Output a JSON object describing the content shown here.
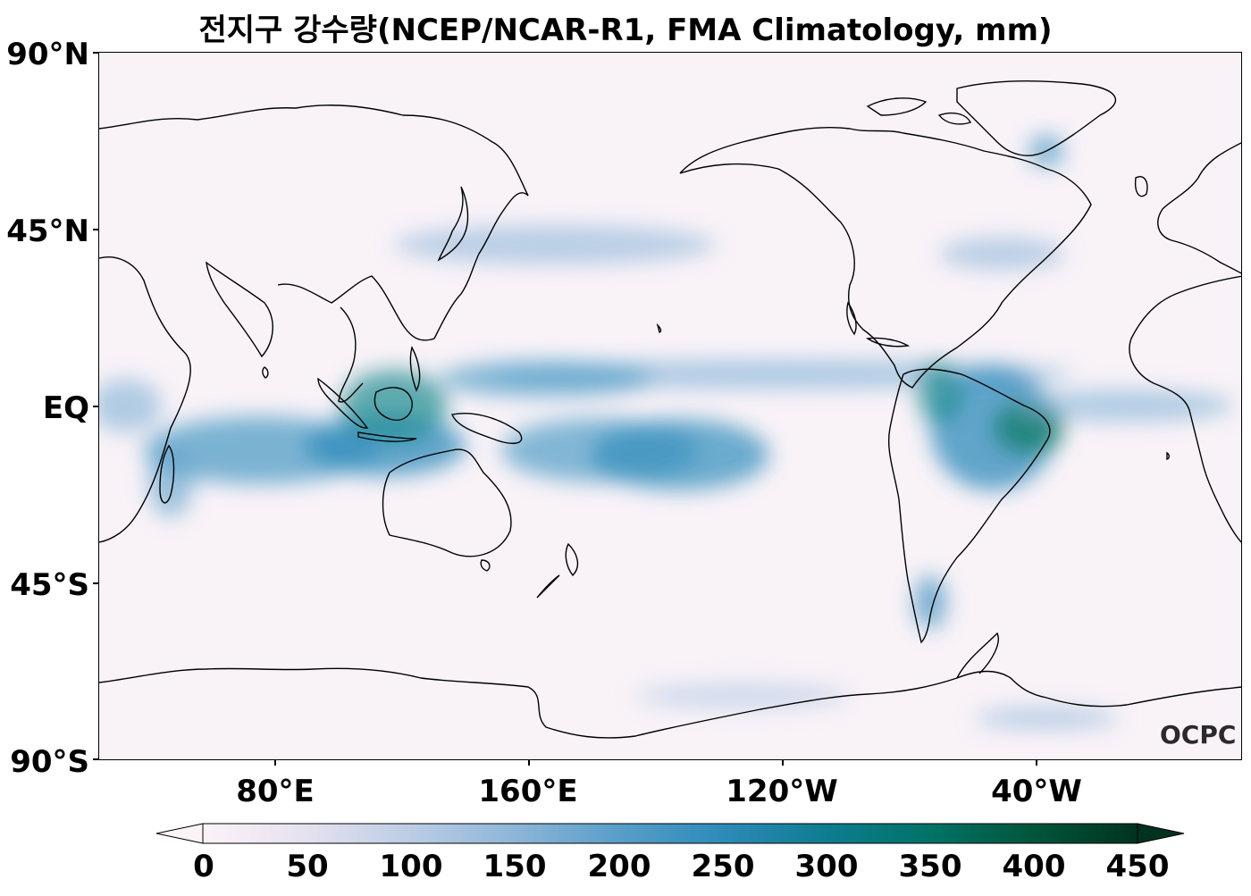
{
  "title": "전지구 강수량(NCEP/NCAR-R1, FMA Climatology, mm)",
  "y_ticks": [
    "90°N",
    "45°N",
    "EQ",
    "45°S",
    "90°S"
  ],
  "x_ticks": [
    "80°E",
    "160°E",
    "120°W",
    "40°W"
  ],
  "colorbar": {
    "ticks": [
      "0",
      "50",
      "100",
      "150",
      "200",
      "250",
      "300",
      "350",
      "400",
      "450"
    ],
    "range": [
      0,
      450
    ],
    "extend": "both",
    "colors": [
      "#fbf3f8",
      "#e6e1ef",
      "#bccde5",
      "#8fb6d8",
      "#5a9fc9",
      "#2c8ab8",
      "#0e7c8f",
      "#007266",
      "#00553a",
      "#00331f"
    ]
  },
  "watermark": "OCPC",
  "colors": {
    "map_background": "#f9f3f8",
    "coastline": "#000000",
    "precip_band": "#2c8ab8"
  },
  "chart_data": {
    "type": "heatmap",
    "title": "전지구 강수량(NCEP/NCAR-R1, FMA Climatology, mm)",
    "xticks": [
      "80°E",
      "160°E",
      "120°W",
      "40°W"
    ],
    "yticks": [
      "90°N",
      "45°N",
      "EQ",
      "45°S",
      "90°S"
    ],
    "lat_range": [
      -90,
      90
    ],
    "lon_range": [
      25,
      385
    ],
    "value_range": [
      0,
      450
    ],
    "units": "mm"
  }
}
